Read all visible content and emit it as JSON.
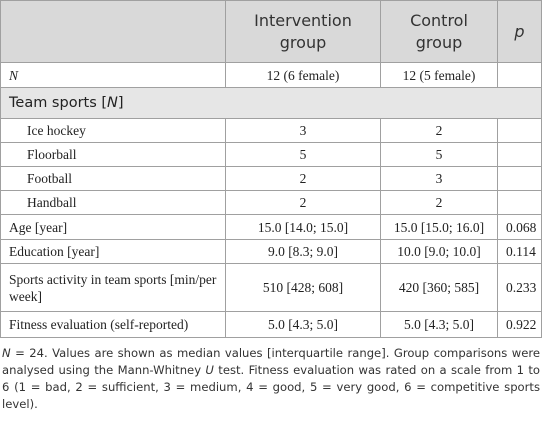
{
  "header": {
    "columns": [
      "Intervention group",
      "Control group",
      "p"
    ]
  },
  "summary_row": [
    "N",
    "12 (6 female)",
    "12 (5 female)"
  ],
  "section": {
    "parts": [
      "Team sports [",
      "N",
      "]"
    ]
  },
  "sub_rows": [
    [
      "Ice hockey",
      "3",
      "2"
    ],
    [
      "Floorball",
      "5",
      "5"
    ],
    [
      "Football",
      "2",
      "3"
    ],
    [
      "Handball",
      "2",
      "2"
    ]
  ],
  "rows": [
    [
      "Age [year]",
      "15.0 [14.0; 15.0]",
      "15.0 [15.0; 16.0]",
      "0.068"
    ],
    [
      "Education [year]",
      "9.0 [8.3; 9.0]",
      "10.0 [9.0; 10.0]",
      "0.114"
    ],
    [
      "Sports activity in team sports [min/per week]",
      "510 [428; 608]",
      "420 [360; 585]",
      "0.233"
    ],
    [
      "Fitness evaluation (self-reported)",
      "5.0 [4.3; 5.0]",
      "5.0 [4.3; 5.0]",
      "0.922"
    ]
  ],
  "footnote": [
    "N",
    " = 24. Values are shown as median values [interquartile range]. Group comparisons were analysed using the Mann-Whitney ",
    "U",
    " test. Fitness evaluation was rated on a scale from 1 to 6 (1 = bad, 2 = sufficient, 3 = medium, 4 = good, 5 = very good, 6 = competitive sports level)."
  ]
}
